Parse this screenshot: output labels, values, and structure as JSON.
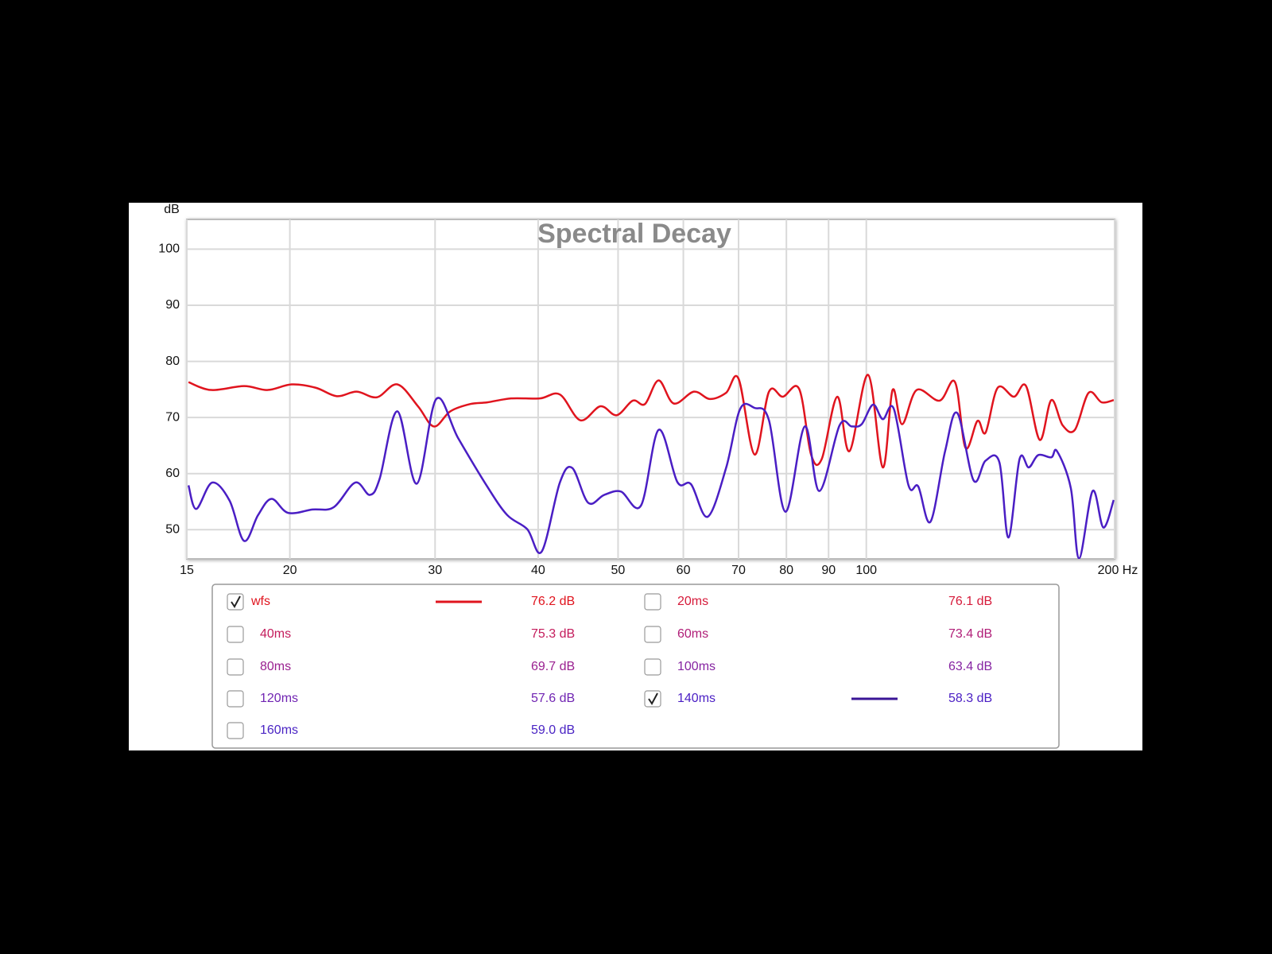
{
  "chart_data": {
    "type": "line",
    "title": "Spectral Decay",
    "y_label": "dB",
    "xscale": "log",
    "xlim": [
      15,
      200
    ],
    "ylim": [
      44.8,
      105.3
    ],
    "grid": true,
    "xticks": [
      15,
      20,
      30,
      40,
      50,
      60,
      70,
      80,
      90,
      100,
      {
        "value": 200,
        "label": "200 Hz"
      }
    ],
    "yticks": [
      50,
      60,
      70,
      80,
      90,
      100
    ],
    "series": [
      {
        "name": "wfs",
        "color": "#e0141e",
        "checked": true,
        "reading": "76.2 dB",
        "x": [
          15.07,
          16.05,
          17.6,
          18.8,
          20.1,
          21.5,
          22.8,
          24.1,
          25.5,
          27.0,
          28.6,
          29.9,
          31.3,
          33.1,
          34.7,
          37.1,
          40.2,
          42.5,
          45.0,
          47.6,
          49.8,
          52.1,
          53.9,
          56.0,
          58.4,
          61.8,
          64.6,
          67.6,
          70.0,
          73.2,
          76.2,
          79.2,
          82.9,
          85.7,
          88.3,
          92.2,
          95.4,
          100.5,
          104.7,
          107.6,
          110.5,
          115.1,
          122.7,
          128.1,
          131.9,
          136.4,
          139.5,
          144.3,
          151.0,
          156.2,
          162.3,
          167.6,
          173.0,
          179.0,
          186.0,
          192.9,
          199.5
        ],
        "values": [
          76.3,
          74.9,
          75.6,
          74.9,
          75.9,
          75.3,
          73.8,
          74.6,
          73.6,
          75.9,
          72,
          68.4,
          71.1,
          72.4,
          72.7,
          73.4,
          73.4,
          74.1,
          69.5,
          72,
          70.4,
          73,
          72.4,
          76.6,
          72.5,
          74.6,
          73.3,
          74.4,
          76.9,
          63.4,
          74.6,
          73.7,
          75.1,
          63.4,
          62.6,
          73.7,
          64,
          77.6,
          61.1,
          74.9,
          68.8,
          74.9,
          73,
          76.3,
          64.6,
          69.4,
          67.3,
          75.3,
          73.7,
          75.6,
          66,
          73.1,
          68.6,
          67.8,
          74.4,
          72.7,
          73.1
        ]
      },
      {
        "name": "20ms",
        "color": "#d61a3a",
        "checked": false,
        "reading": "76.1 dB"
      },
      {
        "name": "40ms",
        "color": "#c41c5c",
        "checked": false,
        "reading": "75.3 dB"
      },
      {
        "name": "60ms",
        "color": "#b01e78",
        "checked": false,
        "reading": "73.4 dB"
      },
      {
        "name": "80ms",
        "color": "#9a2090",
        "checked": false,
        "reading": "69.7 dB"
      },
      {
        "name": "100ms",
        "color": "#8624a2",
        "checked": false,
        "reading": "63.4 dB"
      },
      {
        "name": "120ms",
        "color": "#7024b2",
        "checked": false,
        "reading": "57.6 dB"
      },
      {
        "name": "140ms",
        "color": "#4a1ec4",
        "checked": true,
        "reading": "58.3 dB",
        "x": [
          15.07,
          15.4,
          16.1,
          16.9,
          17.6,
          18.3,
          19.0,
          19.9,
          21.3,
          22.6,
          24.0,
          25.0,
          25.7,
          27.0,
          28.5,
          30.1,
          32.0,
          34.7,
          36.7,
          38.8,
          40.4,
          42.5,
          44.0,
          46.0,
          48.1,
          50.4,
          53.3,
          56.0,
          59.0,
          61.3,
          64.2,
          67.6,
          70.3,
          73.2,
          76.2,
          79.8,
          84.2,
          87.7,
          92.8,
          96.0,
          98.7,
          101.9,
          104.7,
          108.0,
          112.5,
          115.6,
          119.6,
          124.6,
          128.9,
          134.9,
          139.5,
          145.0,
          148.7,
          153.4,
          157.4,
          161.6,
          167.6,
          170.3,
          177.0,
          181.1,
          188.1,
          193.8,
          199.5
        ],
        "values": [
          57.9,
          53.7,
          58.4,
          55.2,
          48,
          52.6,
          55.5,
          53,
          53.6,
          54,
          58.4,
          56.2,
          59.1,
          71.1,
          58.2,
          73.3,
          66.3,
          57.7,
          52.6,
          50.1,
          46.1,
          58.4,
          61,
          54.8,
          56.2,
          56.8,
          54.3,
          67.8,
          58.5,
          58.1,
          52.3,
          61,
          71.5,
          71.7,
          69.5,
          53.2,
          68.4,
          56.9,
          68.6,
          68.4,
          68.8,
          72.3,
          69.7,
          71.5,
          57.9,
          57.7,
          51.4,
          64,
          70.8,
          58.8,
          62.3,
          62,
          48.6,
          62.6,
          61.1,
          63.3,
          62.9,
          64,
          57.4,
          44.9,
          56.9,
          50.4,
          55.3
        ]
      },
      {
        "name": "160ms",
        "color": "#4a24c4",
        "checked": false,
        "reading": "59.0 dB"
      }
    ]
  }
}
